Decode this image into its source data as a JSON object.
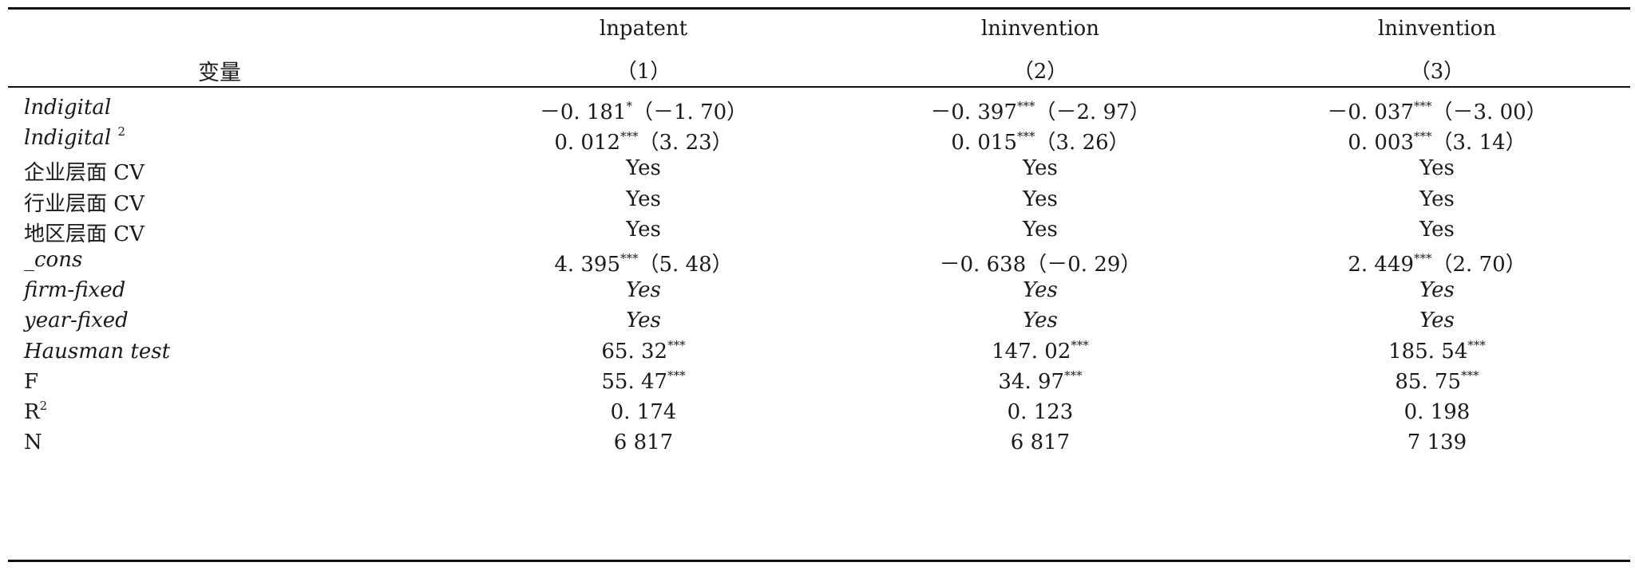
{
  "header": {
    "variable_label": "变量",
    "columns": [
      {
        "dep": "lnpatent",
        "num": "（1）"
      },
      {
        "dep": "lninvention",
        "num": "（2）"
      },
      {
        "dep": "lninvention",
        "num": "（3）"
      }
    ]
  },
  "rows": [
    {
      "label": "lndigital",
      "label_sup": "",
      "italic_label": true,
      "italic_cells": false,
      "cells": [
        {
          "coef": "－0. 181",
          "stars": "*",
          "t": "（－1. 70）"
        },
        {
          "coef": "－0. 397",
          "stars": "***",
          "t": "（－2. 97）"
        },
        {
          "coef": "－0. 037",
          "stars": "***",
          "t": "（－3. 00）"
        }
      ]
    },
    {
      "label": "lndigital ",
      "label_sup": "2",
      "italic_label": true,
      "italic_cells": false,
      "cells": [
        {
          "coef": "0. 012",
          "stars": "***",
          "t": "（3. 23）"
        },
        {
          "coef": "0. 015",
          "stars": "***",
          "t": "（3. 26）"
        },
        {
          "coef": "0. 003",
          "stars": "***",
          "t": "（3. 14）"
        }
      ]
    },
    {
      "label": "企业层面 CV",
      "label_sup": "",
      "italic_label": false,
      "italic_cells": false,
      "cells": [
        {
          "coef": "Yes",
          "stars": "",
          "t": ""
        },
        {
          "coef": "Yes",
          "stars": "",
          "t": ""
        },
        {
          "coef": "Yes",
          "stars": "",
          "t": ""
        }
      ]
    },
    {
      "label": "行业层面 CV",
      "label_sup": "",
      "italic_label": false,
      "italic_cells": false,
      "cells": [
        {
          "coef": "Yes",
          "stars": "",
          "t": ""
        },
        {
          "coef": "Yes",
          "stars": "",
          "t": ""
        },
        {
          "coef": "Yes",
          "stars": "",
          "t": ""
        }
      ]
    },
    {
      "label": "地区层面 CV",
      "label_sup": "",
      "italic_label": false,
      "italic_cells": false,
      "cells": [
        {
          "coef": "Yes",
          "stars": "",
          "t": ""
        },
        {
          "coef": "Yes",
          "stars": "",
          "t": ""
        },
        {
          "coef": "Yes",
          "stars": "",
          "t": ""
        }
      ]
    },
    {
      "label": "_cons",
      "label_sup": "",
      "italic_label": true,
      "italic_cells": false,
      "cells": [
        {
          "coef": "4. 395",
          "stars": "***",
          "t": "（5. 48）"
        },
        {
          "coef": "－0. 638（－0. 29）",
          "stars": "",
          "t": ""
        },
        {
          "coef": "2. 449",
          "stars": "***",
          "t": "（2. 70）"
        }
      ]
    },
    {
      "label": "firm-fixed",
      "label_sup": "",
      "italic_label": true,
      "italic_cells": true,
      "cells": [
        {
          "coef": "Yes",
          "stars": "",
          "t": ""
        },
        {
          "coef": "Yes",
          "stars": "",
          "t": ""
        },
        {
          "coef": "Yes",
          "stars": "",
          "t": ""
        }
      ]
    },
    {
      "label": "year-fixed",
      "label_sup": "",
      "italic_label": true,
      "italic_cells": true,
      "cells": [
        {
          "coef": "Yes",
          "stars": "",
          "t": ""
        },
        {
          "coef": "Yes",
          "stars": "",
          "t": ""
        },
        {
          "coef": "Yes",
          "stars": "",
          "t": ""
        }
      ]
    },
    {
      "label": "Hausman test",
      "label_sup": "",
      "italic_label": true,
      "italic_cells": false,
      "cells": [
        {
          "coef": "65. 32",
          "stars": "***",
          "t": ""
        },
        {
          "coef": "147. 02",
          "stars": "***",
          "t": ""
        },
        {
          "coef": "185. 54",
          "stars": "***",
          "t": ""
        }
      ]
    },
    {
      "label": "F",
      "label_sup": "",
      "italic_label": false,
      "italic_cells": false,
      "cells": [
        {
          "coef": "55. 47",
          "stars": "***",
          "t": ""
        },
        {
          "coef": "34. 97",
          "stars": "***",
          "t": ""
        },
        {
          "coef": "85. 75",
          "stars": "***",
          "t": ""
        }
      ]
    },
    {
      "label": "R",
      "label_sup": "2",
      "italic_label": false,
      "italic_cells": false,
      "cells": [
        {
          "coef": "0. 174",
          "stars": "",
          "t": ""
        },
        {
          "coef": "0. 123",
          "stars": "",
          "t": ""
        },
        {
          "coef": "0. 198",
          "stars": "",
          "t": ""
        }
      ]
    },
    {
      "label": "N",
      "label_sup": "",
      "italic_label": false,
      "italic_cells": false,
      "cells": [
        {
          "coef": "6 817",
          "stars": "",
          "t": ""
        },
        {
          "coef": "6 817",
          "stars": "",
          "t": ""
        },
        {
          "coef": "7 139",
          "stars": "",
          "t": ""
        }
      ]
    }
  ]
}
